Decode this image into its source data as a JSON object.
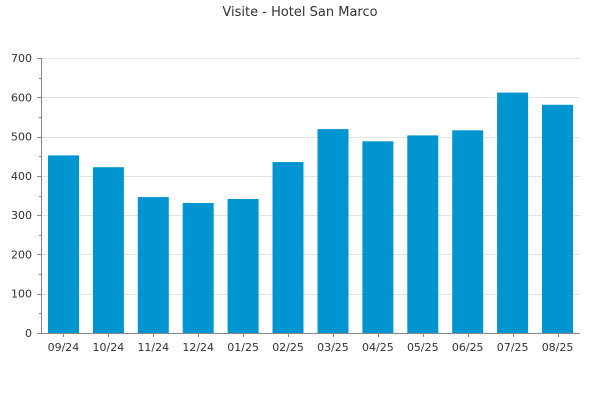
{
  "chart_data": {
    "type": "bar",
    "title": "Visite - Hotel San Marco",
    "xlabel": "",
    "ylabel": "",
    "categories": [
      "09/24",
      "10/24",
      "11/24",
      "12/24",
      "01/25",
      "02/25",
      "03/25",
      "04/25",
      "05/25",
      "06/25",
      "07/25",
      "08/25"
    ],
    "values": [
      452,
      422,
      346,
      331,
      341,
      435,
      519,
      488,
      503,
      516,
      612,
      581
    ],
    "ylim": [
      0,
      700
    ],
    "yticks": [
      0,
      100,
      200,
      300,
      400,
      500,
      600,
      700
    ],
    "grid": true,
    "legend": "none",
    "colors": {
      "bar": "#0095d1",
      "grid": "#e3e3e3",
      "axis": "#888888",
      "text": "#333333"
    }
  }
}
